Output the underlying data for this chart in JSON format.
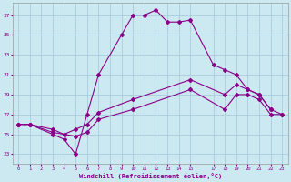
{
  "xlabel": "Windchill (Refroidissement éolien,°C)",
  "background_color": "#cce8f0",
  "grid_color": "#aaccdd",
  "line_color": "#880088",
  "xlim": [
    -0.5,
    23.5
  ],
  "ylim": [
    22,
    38.2
  ],
  "yticks": [
    23,
    25,
    27,
    29,
    31,
    33,
    35,
    37
  ],
  "xticks": [
    0,
    1,
    2,
    3,
    4,
    5,
    6,
    7,
    8,
    9,
    10,
    11,
    12,
    13,
    14,
    15,
    17,
    18,
    19,
    20,
    21,
    22,
    23
  ],
  "line1_x": [
    0,
    1,
    3,
    4,
    5,
    6,
    7,
    9,
    10,
    11,
    12,
    13,
    14,
    15,
    17,
    18,
    19,
    20,
    21,
    22
  ],
  "line1_y": [
    26,
    26,
    25,
    24.5,
    23,
    27,
    31,
    35,
    37,
    37,
    37.5,
    36.3,
    36.3,
    36.5,
    32,
    31.5,
    31,
    29.5,
    29,
    27.5
  ],
  "line2_x": [
    0,
    1,
    3,
    4,
    5,
    6,
    7,
    10,
    15,
    18,
    19,
    20,
    21,
    22,
    23
  ],
  "line2_y": [
    26,
    26,
    25.5,
    25,
    25.5,
    26,
    27.2,
    28.5,
    30.5,
    29,
    30,
    29.5,
    29,
    27.5,
    27
  ],
  "line3_x": [
    0,
    1,
    3,
    4,
    5,
    6,
    7,
    10,
    15,
    18,
    19,
    20,
    21,
    22,
    23
  ],
  "line3_y": [
    26,
    26,
    25.2,
    25,
    24.8,
    25.2,
    26.5,
    27.5,
    29.5,
    27.5,
    29,
    29,
    28.5,
    27,
    27
  ]
}
